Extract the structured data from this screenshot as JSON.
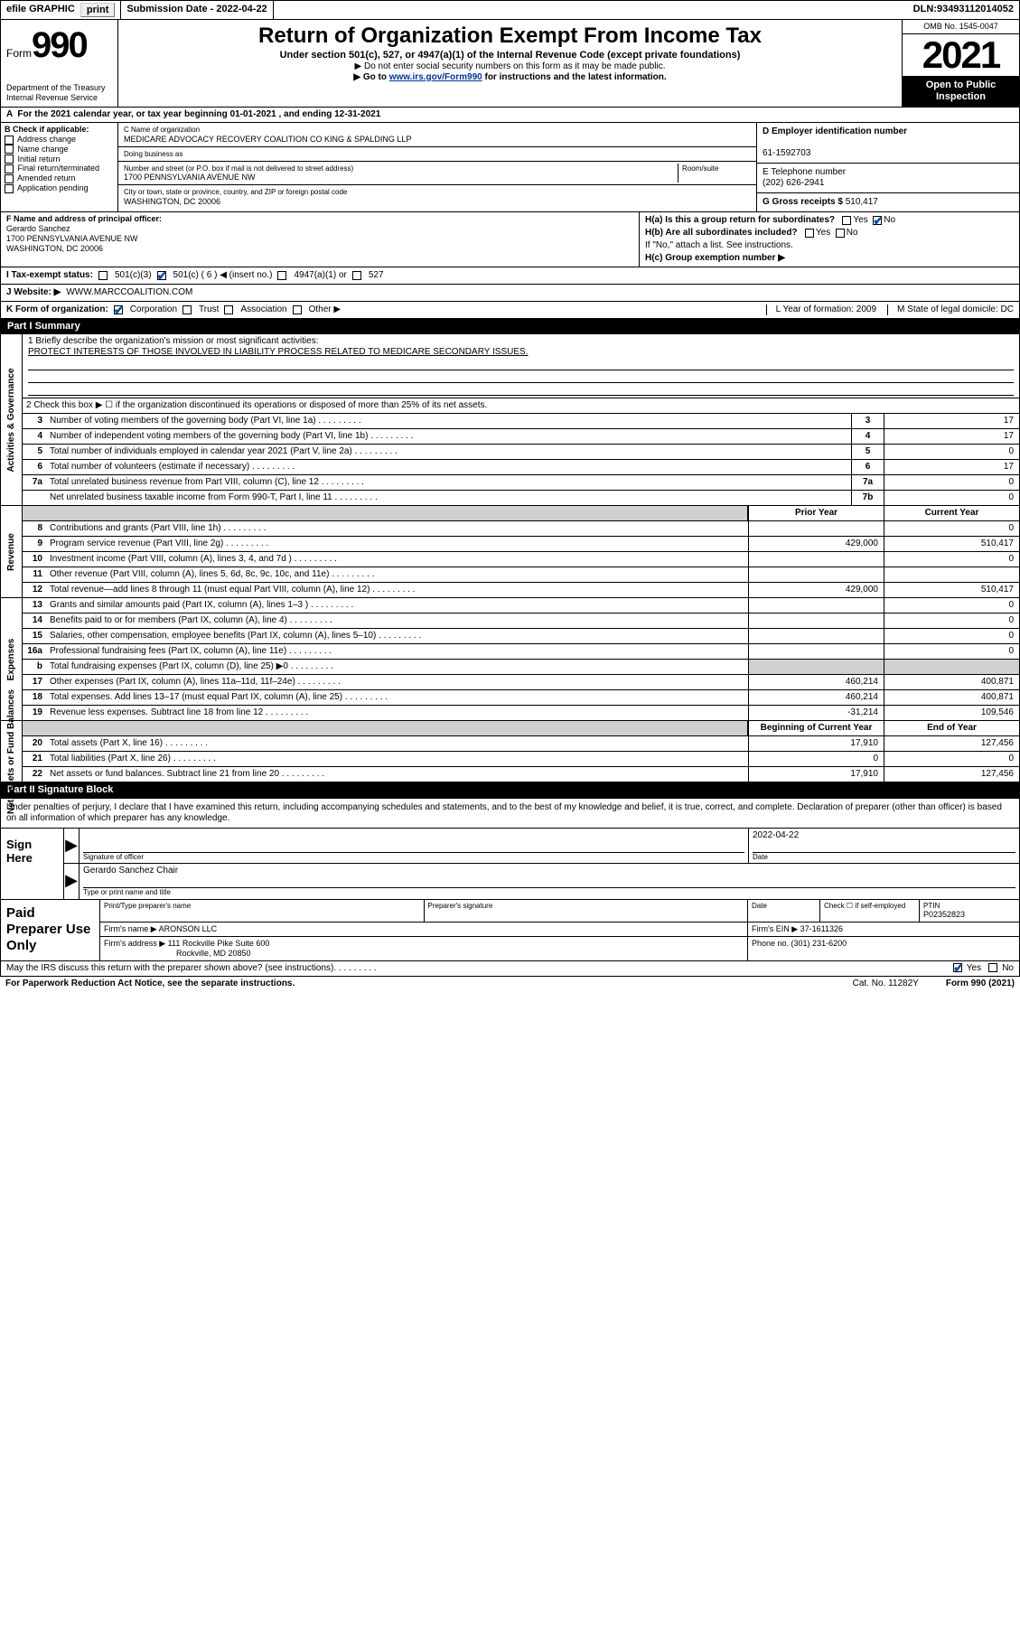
{
  "efile": {
    "label": "efile GRAPHIC",
    "print": "print",
    "sub_date_label": "Submission Date - ",
    "sub_date": "2022-04-22",
    "dln_label": "DLN: ",
    "dln": "93493112014052"
  },
  "header": {
    "form_word": "Form",
    "form_num": "990",
    "dept": "Department of the Treasury",
    "irs": "Internal Revenue Service",
    "title": "Return of Organization Exempt From Income Tax",
    "subtitle": "Under section 501(c), 527, or 4947(a)(1) of the Internal Revenue Code (except private foundations)",
    "note1": "▶ Do not enter social security numbers on this form as it may be made public.",
    "note2_a": "▶ Go to ",
    "note2_link": "www.irs.gov/Form990",
    "note2_b": " for instructions and the latest information.",
    "omb": "OMB No. 1545-0047",
    "year": "2021",
    "open": "Open to Public Inspection"
  },
  "periodA": "For the 2021 calendar year, or tax year beginning 01-01-2021   , and ending 12-31-2021",
  "B": {
    "label": "B Check if applicable:",
    "addr": "Address change",
    "name": "Name change",
    "init": "Initial return",
    "final": "Final return/terminated",
    "amend": "Amended return",
    "app": "Application pending"
  },
  "C": {
    "label": "C Name of organization",
    "name": "MEDICARE ADVOCACY RECOVERY COALITION CO KING & SPALDING LLP",
    "dba_label": "Doing business as",
    "street_label": "Number and street (or P.O. box if mail is not delivered to street address)",
    "room_label": "Room/suite",
    "street": "1700 PENNSYLVANIA AVENUE NW",
    "city_label": "City or town, state or province, country, and ZIP or foreign postal code",
    "city": "WASHINGTON, DC  20006"
  },
  "D": {
    "label": "D Employer identification number",
    "val": "61-1592703"
  },
  "E": {
    "label": "E Telephone number",
    "val": "(202) 626-2941"
  },
  "G": {
    "label": "G Gross receipts $ ",
    "val": "510,417"
  },
  "F": {
    "label": "F  Name and address of principal officer:",
    "name": "Gerardo Sanchez",
    "line1": "1700 PENNSYLVANIA AVENUE NW",
    "line2": "WASHINGTON, DC  20006"
  },
  "H": {
    "a": "H(a)  Is this a group return for subordinates?",
    "b": "H(b)  Are all subordinates included?",
    "bnote": "If \"No,\" attach a list. See instructions.",
    "c": "H(c)  Group exemption number ▶",
    "yes": "Yes",
    "no": "No"
  },
  "I": {
    "label": "I   Tax-exempt status:",
    "c3": "501(c)(3)",
    "c": "501(c) ( 6 ) ◀ (insert no.)",
    "a1": "4947(a)(1) or",
    "s527": "527"
  },
  "J": {
    "label": "J   Website: ▶ ",
    "val": "WWW.MARCCOALITION.COM"
  },
  "K": {
    "label": "K Form of organization:",
    "corp": "Corporation",
    "trust": "Trust",
    "assoc": "Association",
    "other": "Other ▶",
    "L": "L Year of formation: 2009",
    "M": "M State of legal domicile: DC"
  },
  "part1": {
    "hdr": "Part I      Summary",
    "mission_label": "1   Briefly describe the organization's mission or most significant activities:",
    "mission": "PROTECT INTERESTS OF THOSE INVOLVED IN LIABILITY PROCESS RELATED TO MEDICARE SECONDARY ISSUES.",
    "line2": "2   Check this box ▶ ☐  if the organization discontinued its operations or disposed of more than 25% of its net assets.",
    "rows_gov": [
      {
        "n": "3",
        "d": "Number of voting members of the governing body (Part VI, line 1a)",
        "b": "3",
        "v": "17"
      },
      {
        "n": "4",
        "d": "Number of independent voting members of the governing body (Part VI, line 1b)",
        "b": "4",
        "v": "17"
      },
      {
        "n": "5",
        "d": "Total number of individuals employed in calendar year 2021 (Part V, line 2a)",
        "b": "5",
        "v": "0"
      },
      {
        "n": "6",
        "d": "Total number of volunteers (estimate if necessary)",
        "b": "6",
        "v": "17"
      },
      {
        "n": "7a",
        "d": "Total unrelated business revenue from Part VIII, column (C), line 12",
        "b": "7a",
        "v": "0"
      },
      {
        "n": "",
        "d": "Net unrelated business taxable income from Form 990-T, Part I, line 11",
        "b": "7b",
        "v": "0"
      }
    ],
    "col_prior": "Prior Year",
    "col_curr": "Current Year",
    "rows_rev": [
      {
        "n": "8",
        "d": "Contributions and grants (Part VIII, line 1h)",
        "p": "",
        "c": "0"
      },
      {
        "n": "9",
        "d": "Program service revenue (Part VIII, line 2g)",
        "p": "429,000",
        "c": "510,417"
      },
      {
        "n": "10",
        "d": "Investment income (Part VIII, column (A), lines 3, 4, and 7d )",
        "p": "",
        "c": "0"
      },
      {
        "n": "11",
        "d": "Other revenue (Part VIII, column (A), lines 5, 6d, 8c, 9c, 10c, and 11e)",
        "p": "",
        "c": ""
      },
      {
        "n": "12",
        "d": "Total revenue—add lines 8 through 11 (must equal Part VIII, column (A), line 12)",
        "p": "429,000",
        "c": "510,417"
      }
    ],
    "rows_exp": [
      {
        "n": "13",
        "d": "Grants and similar amounts paid (Part IX, column (A), lines 1–3 )",
        "p": "",
        "c": "0"
      },
      {
        "n": "14",
        "d": "Benefits paid to or for members (Part IX, column (A), line 4)",
        "p": "",
        "c": "0"
      },
      {
        "n": "15",
        "d": "Salaries, other compensation, employee benefits (Part IX, column (A), lines 5–10)",
        "p": "",
        "c": "0"
      },
      {
        "n": "16a",
        "d": "Professional fundraising fees (Part IX, column (A), line 11e)",
        "p": "",
        "c": "0"
      },
      {
        "n": "b",
        "d": "Total fundraising expenses (Part IX, column (D), line 25) ▶0",
        "p": "SHADE",
        "c": "SHADE"
      },
      {
        "n": "17",
        "d": "Other expenses (Part IX, column (A), lines 11a–11d, 11f–24e)",
        "p": "460,214",
        "c": "400,871"
      },
      {
        "n": "18",
        "d": "Total expenses. Add lines 13–17 (must equal Part IX, column (A), line 25)",
        "p": "460,214",
        "c": "400,871"
      },
      {
        "n": "19",
        "d": "Revenue less expenses. Subtract line 18 from line 12",
        "p": "-31,214",
        "c": "109,546"
      }
    ],
    "col_begin": "Beginning of Current Year",
    "col_end": "End of Year",
    "rows_net": [
      {
        "n": "20",
        "d": "Total assets (Part X, line 16)",
        "p": "17,910",
        "c": "127,456"
      },
      {
        "n": "21",
        "d": "Total liabilities (Part X, line 26)",
        "p": "0",
        "c": "0"
      },
      {
        "n": "22",
        "d": "Net assets or fund balances. Subtract line 21 from line 20",
        "p": "17,910",
        "c": "127,456"
      }
    ],
    "side_gov": "Activities & Governance",
    "side_rev": "Revenue",
    "side_exp": "Expenses",
    "side_net": "Net Assets or Fund Balances"
  },
  "part2": {
    "hdr": "Part II     Signature Block",
    "decl": "Under penalties of perjury, I declare that I have examined this return, including accompanying schedules and statements, and to the best of my knowledge and belief, it is true, correct, and complete. Declaration of preparer (other than officer) is based on all information of which preparer has any knowledge.",
    "sign_here": "Sign Here",
    "sig_officer_lab": "Signature of officer",
    "date_lab": "Date",
    "date": "2022-04-22",
    "name_title": "Gerardo Sanchez Chair",
    "name_title_lab": "Type or print name and title",
    "paid": "Paid Preparer Use Only",
    "prep_name_lab": "Print/Type preparer's name",
    "prep_sig_lab": "Preparer's signature",
    "prep_date_lab": "Date",
    "check_if": "Check ☐ if self-employed",
    "ptin_lab": "PTIN",
    "ptin": "P02352823",
    "firm_name_lab": "Firm's name     ▶ ",
    "firm_name": "ARONSON LLC",
    "firm_ein_lab": "Firm's EIN ▶ ",
    "firm_ein": "37-1611326",
    "firm_addr_lab": "Firm's address ▶ ",
    "firm_addr1": "111 Rockville Pike Suite 600",
    "firm_addr2": "Rockville, MD  20850",
    "phone_lab": "Phone no. ",
    "phone": "(301) 231-6200",
    "may": "May the IRS discuss this return with the preparer shown above? (see instructions)",
    "yes": "Yes",
    "no": "No"
  },
  "footer": {
    "left": "For Paperwork Reduction Act Notice, see the separate instructions.",
    "mid": "Cat. No. 11282Y",
    "right": "Form 990 (2021)"
  }
}
